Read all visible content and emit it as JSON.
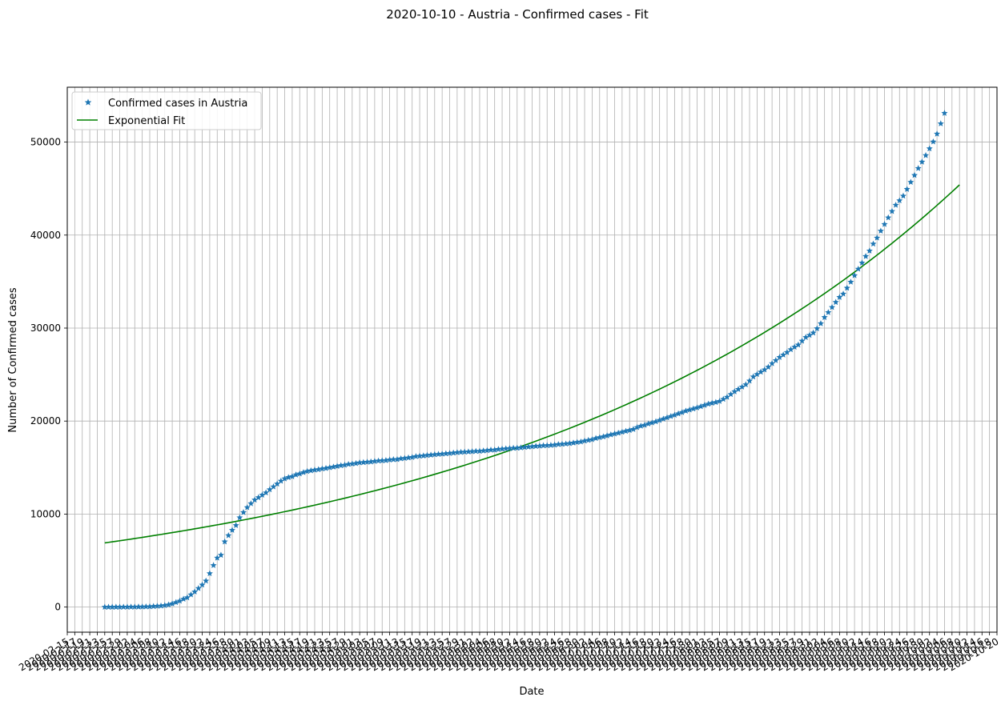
{
  "chart_data": {
    "type": "line",
    "title": "2020-10-10 - Austria - Confirmed cases - Fit",
    "xlabel": "Date",
    "ylabel": "Number of Confirmed cases",
    "xlim": [
      "2020-02-15",
      "2020-10-20"
    ],
    "ylim": [
      -2700,
      55900
    ],
    "y_ticks": [
      0,
      10000,
      20000,
      30000,
      40000,
      50000
    ],
    "x_tick_start": "2020-02-15",
    "x_tick_end": "2020-10-20",
    "grid": true,
    "legend_position": "upper left",
    "series": [
      {
        "name": "Confirmed cases in Austria",
        "style": "markers",
        "marker": "star",
        "color": "#1f77b4",
        "x_start": "2020-02-25",
        "x_end": "2020-10-10",
        "values": [
          2,
          2,
          3,
          3,
          5,
          9,
          10,
          14,
          18,
          24,
          29,
          41,
          55,
          79,
          104,
          131,
          182,
          246,
          361,
          504,
          655,
          860,
          1018,
          1332,
          1646,
          2013,
          2388,
          2814,
          3611,
          4486,
          5283,
          5588,
          7029,
          7697,
          8271,
          8788,
          9618,
          10180,
          10711,
          11129,
          11525,
          11781,
          12051,
          12297,
          12639,
          12942,
          13244,
          13555,
          13806,
          13945,
          14041,
          14226,
          14336,
          14476,
          14595,
          14671,
          14749,
          14795,
          14873,
          14925,
          15002,
          15071,
          15148,
          15225,
          15274,
          15357,
          15402,
          15450,
          15531,
          15558,
          15597,
          15621,
          15684,
          15722,
          15752,
          15774,
          15833,
          15871,
          15882,
          15961,
          16002,
          16058,
          16109,
          16201,
          16242,
          16269,
          16321,
          16353,
          16404,
          16436,
          16465,
          16503,
          16539,
          16581,
          16628,
          16654,
          16685,
          16702,
          16731,
          16759,
          16771,
          16805,
          16843,
          16898,
          16902,
          16968,
          17005,
          17034,
          17064,
          17094,
          17109,
          17135,
          17189,
          17223,
          17260,
          17301,
          17330,
          17364,
          17380,
          17405,
          17439,
          17497,
          17528,
          17553,
          17603,
          17656,
          17723,
          17766,
          17873,
          17941,
          18015,
          18147,
          18240,
          18323,
          18429,
          18532,
          18630,
          18718,
          18821,
          18916,
          19011,
          19118,
          19318,
          19470,
          19568,
          19707,
          19821,
          19944,
          20085,
          20231,
          20372,
          20510,
          20648,
          20795,
          20935,
          21086,
          21212,
          21320,
          21435,
          21566,
          21711,
          21837,
          21937,
          22020,
          22134,
          22352,
          22579,
          22877,
          23173,
          23421,
          23672,
          23924,
          24323,
          24766,
          25031,
          25281,
          25522,
          25810,
          26194,
          26524,
          26863,
          27117,
          27389,
          27697,
          27962,
          28198,
          28617,
          29006,
          29232,
          29486,
          29948,
          30489,
          31153,
          31686,
          32234,
          32779,
          33317,
          33676,
          34306,
          34954,
          35655,
          36354,
          37012,
          37718,
          38305,
          39052,
          39700,
          40441,
          41165,
          41874,
          42556,
          43226,
          43711,
          44209,
          44933,
          45690,
          46432,
          47179,
          47869,
          48566,
          49301,
          50035,
          50881,
          51986,
          53109
        ]
      },
      {
        "name": "Exponential Fit",
        "style": "line",
        "color": "#008000",
        "x_start": "2020-02-25",
        "x_end": "2020-10-10",
        "model": "exponential",
        "y_start": 6900,
        "y_end": 45400
      }
    ]
  }
}
